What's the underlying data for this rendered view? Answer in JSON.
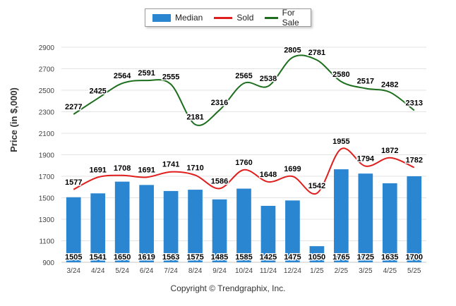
{
  "chart_data": {
    "type": "bar",
    "categories": [
      "3/24",
      "4/24",
      "5/24",
      "6/24",
      "7/24",
      "8/24",
      "9/24",
      "10/24",
      "11/24",
      "12/24",
      "1/25",
      "2/25",
      "3/25",
      "4/25",
      "5/25"
    ],
    "series": [
      {
        "name": "Median",
        "kind": "bar",
        "color": "#2b86d2",
        "values": [
          1505,
          1541,
          1650,
          1619,
          1563,
          1575,
          1485,
          1585,
          1425,
          1475,
          1050,
          1765,
          1725,
          1635,
          1700
        ]
      },
      {
        "name": "Sold",
        "kind": "line",
        "color": "#e01e1e",
        "values": [
          1577,
          1691,
          1708,
          1691,
          1741,
          1710,
          1586,
          1760,
          1648,
          1699,
          1542,
          1955,
          1794,
          1872,
          1782
        ]
      },
      {
        "name": "For Sale",
        "kind": "line",
        "color": "#1c6e1c",
        "values": [
          2277,
          2425,
          2564,
          2591,
          2555,
          2181,
          2316,
          2565,
          2538,
          2805,
          2781,
          2580,
          2517,
          2482,
          2313
        ]
      }
    ],
    "ylabel": "Price (in $,000)",
    "xlabel": "",
    "ylim": [
      900,
      2900
    ],
    "yticks": [
      900,
      1100,
      1300,
      1500,
      1700,
      1900,
      2100,
      2300,
      2500,
      2700,
      2900
    ],
    "grid": true,
    "legend_position": "top-center"
  },
  "footer": {
    "copyright": "Copyright © Trendgraphix, Inc."
  }
}
